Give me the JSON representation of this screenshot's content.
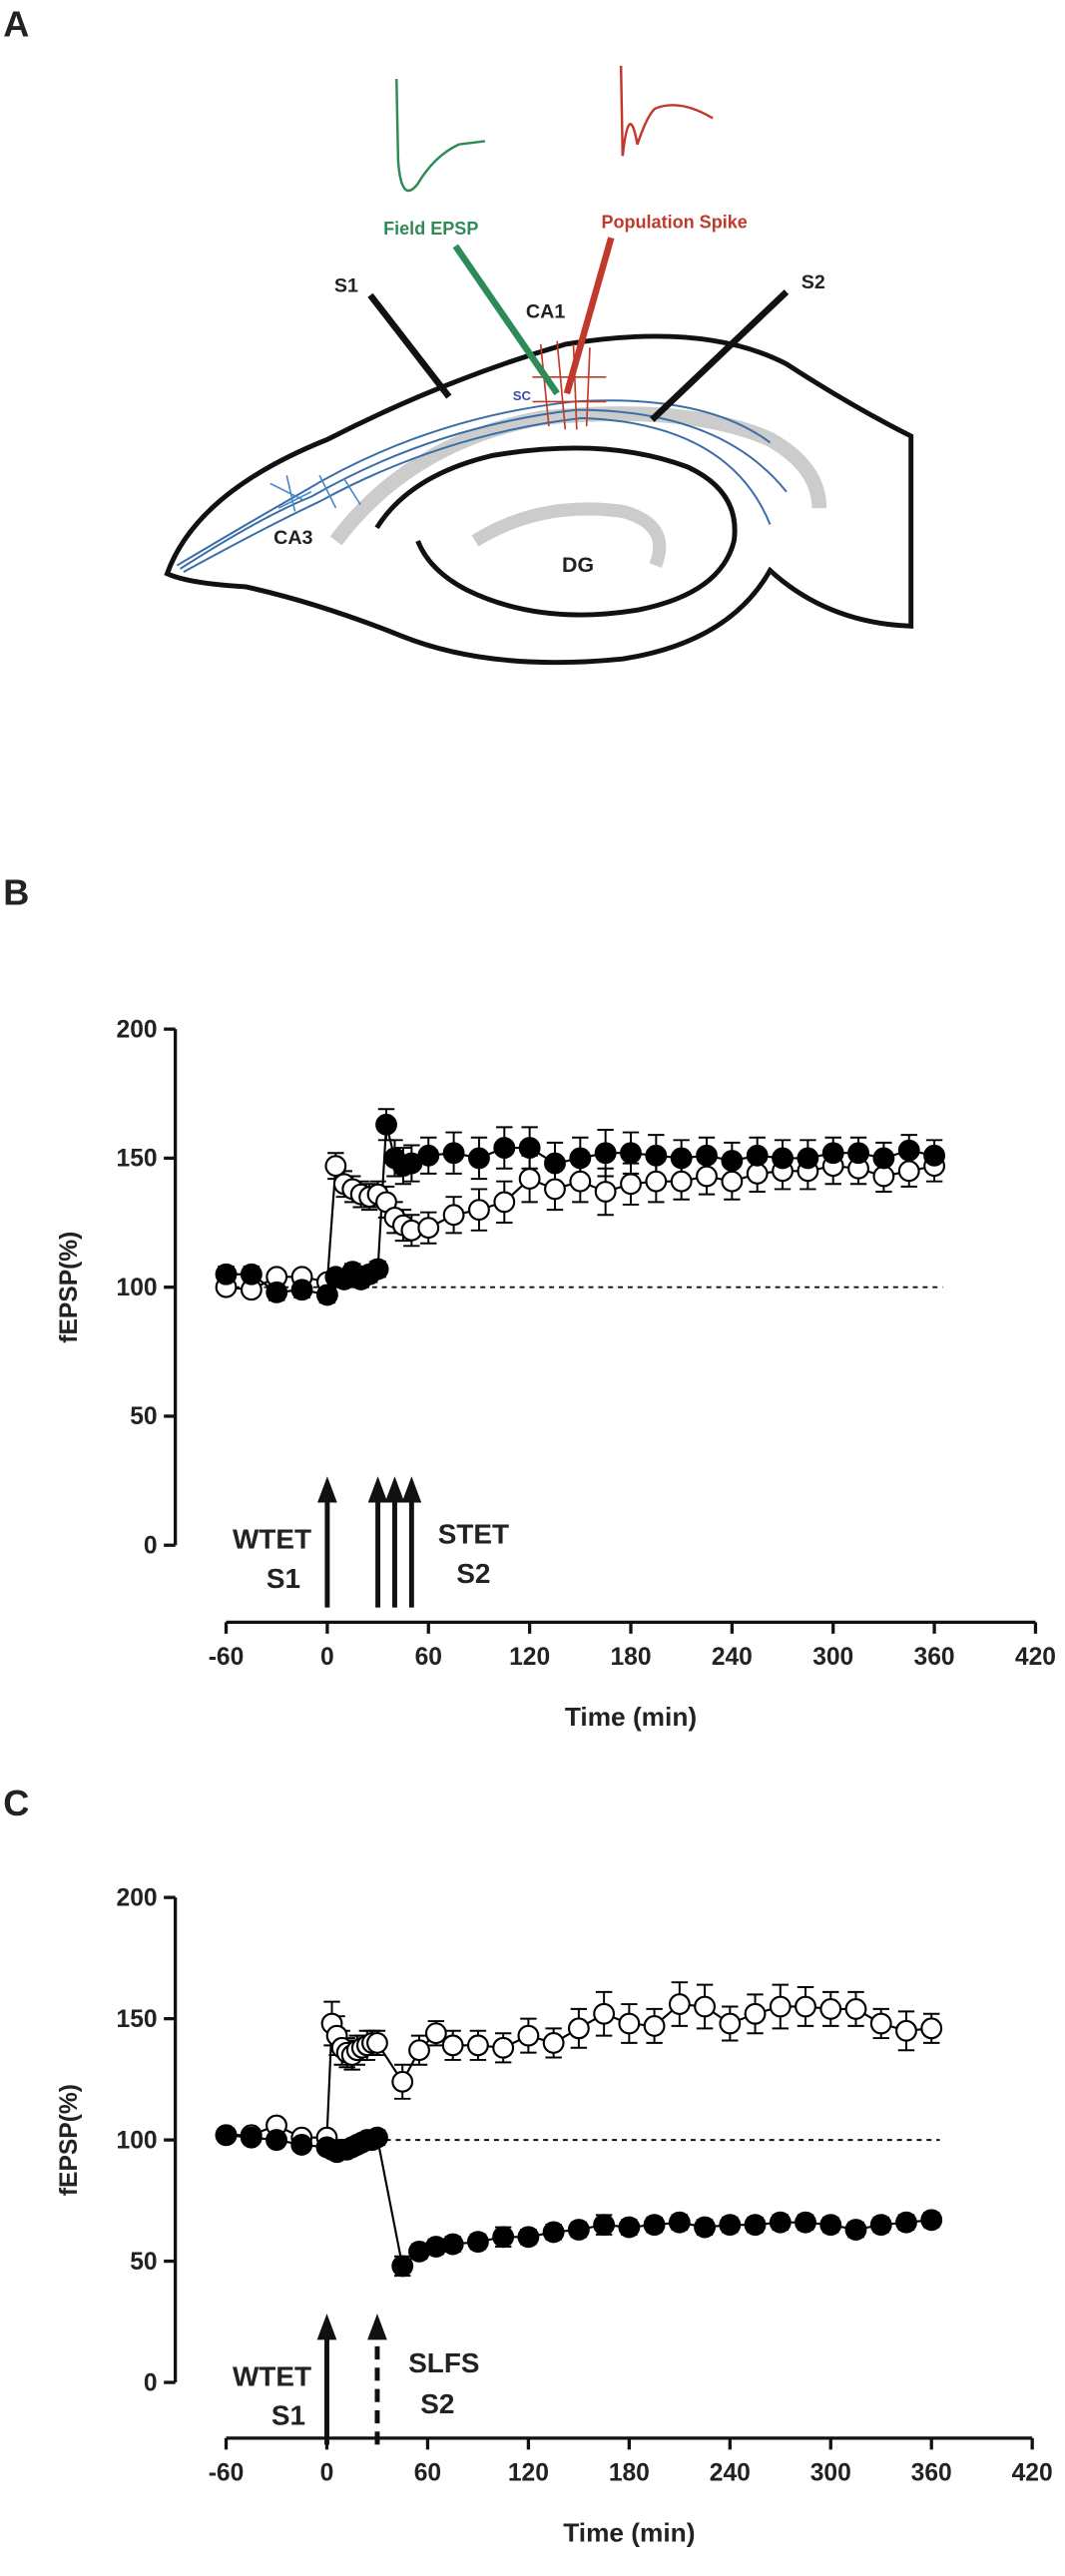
{
  "diagram": {
    "panel": "A",
    "labels": {
      "field": "Field EPSP",
      "spike": "Population Spike",
      "s1": "S1",
      "ca1": "CA1",
      "s2": "S2",
      "sc": "SC",
      "ca3": "CA3",
      "dg": "DG"
    }
  },
  "chart_data": [
    {
      "type": "line",
      "panel": "B",
      "ylabel": "fEPSP(%)",
      "xlabel": "Time (min)",
      "xlim": [
        -60,
        420
      ],
      "xticks": [
        -60,
        0,
        60,
        120,
        180,
        240,
        300,
        360,
        420
      ],
      "ylim": [
        0,
        200
      ],
      "yticks": [
        0,
        50,
        100,
        150,
        200
      ],
      "reference_line": 100,
      "annotations": [
        "WTET",
        "S1",
        "STET",
        "S2"
      ],
      "arrows": [
        {
          "x": 0,
          "style": "solid"
        },
        {
          "x": 30,
          "style": "solid"
        },
        {
          "x": 40,
          "style": "solid"
        },
        {
          "x": 50,
          "style": "solid"
        }
      ],
      "x": [
        -60,
        -45,
        -30,
        -15,
        0,
        5,
        10,
        15,
        20,
        25,
        30,
        35,
        40,
        45,
        50,
        60,
        75,
        90,
        105,
        120,
        135,
        150,
        165,
        180,
        195,
        210,
        225,
        240,
        255,
        270,
        285,
        300,
        315,
        330,
        345,
        360
      ],
      "series": [
        {
          "color": "#000000",
          "fill": "#ffffff",
          "values": [
            100,
            99,
            104,
            104,
            102,
            147,
            140,
            138,
            136,
            135,
            136,
            133,
            127,
            124,
            122,
            123,
            128,
            130,
            133,
            142,
            138,
            141,
            137,
            140,
            141,
            141,
            143,
            141,
            144,
            145,
            145,
            147,
            146,
            143,
            145,
            147
          ],
          "errors": [
            2,
            2,
            2,
            2,
            2,
            5,
            5,
            5,
            5,
            5,
            5,
            6,
            6,
            6,
            6,
            6,
            7,
            8,
            8,
            9,
            8,
            8,
            9,
            8,
            8,
            7,
            7,
            7,
            7,
            7,
            7,
            7,
            6,
            6,
            6,
            6
          ]
        },
        {
          "color": "#000000",
          "fill": "#000000",
          "values": [
            105,
            105,
            98,
            99,
            97,
            104,
            103,
            106,
            103,
            105,
            107,
            163,
            150,
            147,
            148,
            151,
            152,
            150,
            154,
            154,
            148,
            150,
            152,
            152,
            151,
            150,
            151,
            149,
            151,
            150,
            150,
            152,
            152,
            150,
            153,
            151
          ],
          "errors": [
            3,
            3,
            3,
            3,
            3,
            3,
            3,
            3,
            3,
            3,
            3,
            6,
            7,
            7,
            7,
            7,
            8,
            8,
            8,
            8,
            8,
            8,
            9,
            8,
            8,
            7,
            7,
            7,
            7,
            7,
            7,
            6,
            6,
            6,
            6,
            6
          ]
        }
      ]
    },
    {
      "type": "line",
      "panel": "C",
      "ylabel": "fEPSP(%)",
      "xlabel": "Time (min)",
      "xlim": [
        -60,
        420
      ],
      "xticks": [
        -60,
        0,
        60,
        120,
        180,
        240,
        300,
        360,
        420
      ],
      "ylim": [
        0,
        200
      ],
      "yticks": [
        0,
        50,
        100,
        150,
        200
      ],
      "reference_line": 100,
      "annotations": [
        "WTET",
        "S1",
        "SLFS",
        "S2"
      ],
      "arrows": [
        {
          "x": 0,
          "style": "solid"
        },
        {
          "x": 30,
          "style": "dashed"
        }
      ],
      "x": [
        -60,
        -45,
        -30,
        -15,
        0,
        3,
        6,
        9,
        12,
        15,
        18,
        21,
        24,
        27,
        30,
        45,
        55,
        65,
        75,
        90,
        105,
        120,
        135,
        150,
        165,
        180,
        195,
        210,
        225,
        240,
        255,
        270,
        285,
        300,
        315,
        330,
        345,
        360
      ],
      "series": [
        {
          "color": "#000000",
          "fill": "#ffffff",
          "values": [
            102,
            102,
            106,
            101,
            101,
            148,
            143,
            138,
            136,
            135,
            137,
            138,
            139,
            140,
            140,
            124,
            137,
            144,
            139,
            139,
            138,
            143,
            140,
            146,
            152,
            148,
            147,
            156,
            155,
            148,
            152,
            155,
            155,
            154,
            154,
            148,
            145,
            146
          ],
          "errors": [
            2,
            2,
            2,
            2,
            2,
            9,
            8,
            7,
            6,
            6,
            6,
            5,
            6,
            5,
            5,
            7,
            6,
            5,
            6,
            6,
            6,
            7,
            6,
            8,
            9,
            8,
            7,
            9,
            9,
            7,
            8,
            9,
            8,
            7,
            7,
            6,
            8,
            6
          ]
        },
        {
          "color": "#000000",
          "fill": "#000000",
          "values": [
            102,
            101,
            100,
            98,
            97,
            96,
            95,
            96,
            96,
            97,
            98,
            99,
            100,
            100,
            101,
            48,
            54,
            56,
            57,
            58,
            60,
            60,
            62,
            63,
            65,
            64,
            65,
            66,
            64,
            65,
            65,
            66,
            66,
            65,
            63,
            65,
            66,
            67
          ],
          "errors": [
            2,
            2,
            2,
            2,
            2,
            3,
            3,
            3,
            3,
            3,
            3,
            3,
            3,
            3,
            3,
            4,
            3,
            3,
            3,
            3,
            4,
            3,
            3,
            3,
            4,
            3,
            3,
            3,
            3,
            3,
            3,
            3,
            3,
            3,
            3,
            3,
            3,
            3
          ]
        }
      ]
    }
  ]
}
